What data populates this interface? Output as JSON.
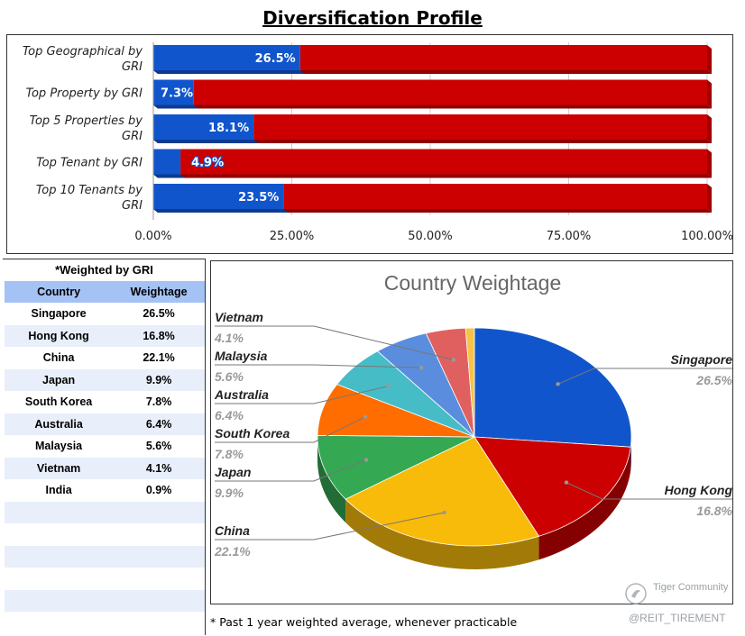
{
  "title": "Diversification Profile",
  "chart_data": [
    {
      "type": "bar",
      "orientation": "horizontal",
      "stacked": "100%",
      "categories": [
        "Top Geographical by GRI",
        "Top Property by GRI",
        "Top 5 Properties by GRI",
        "Top Tenant by GRI",
        "Top 10 Tenants by GRI"
      ],
      "series": [
        {
          "values": [
            26.5,
            7.3,
            18.1,
            4.9,
            23.5
          ],
          "color": "#1155cc"
        },
        {
          "values": [
            73.5,
            92.7,
            81.9,
            95.1,
            76.5
          ],
          "color": "#cc0000"
        }
      ],
      "data_labels": [
        "26.5%",
        "7.3%",
        "18.1%",
        "4.9%",
        "23.5%"
      ],
      "xlim": [
        0,
        100
      ],
      "xticks": [
        "0.00%",
        "25.00%",
        "50.00%",
        "75.00%",
        "100.00%"
      ],
      "grid": true
    },
    {
      "type": "pie",
      "title": "Country Weightage",
      "slices": [
        {
          "label": "Singapore",
          "value": 26.5,
          "label_text": "26.5%",
          "color": "#1155cc"
        },
        {
          "label": "Hong Kong",
          "value": 16.8,
          "label_text": "16.8%",
          "color": "#cc0000"
        },
        {
          "label": "China",
          "value": 22.1,
          "label_text": "22.1%",
          "color": "#f9bb0a"
        },
        {
          "label": "Japan",
          "value": 9.9,
          "label_text": "9.9%",
          "color": "#34a853"
        },
        {
          "label": "South Korea",
          "value": 7.8,
          "label_text": "7.8%",
          "color": "#ff6d01"
        },
        {
          "label": "Australia",
          "value": 6.4,
          "label_text": "6.4%",
          "color": "#46bdc6"
        },
        {
          "label": "Malaysia",
          "value": 5.6,
          "label_text": "5.6%",
          "color": "#5b8dde"
        },
        {
          "label": "Vietnam",
          "value": 4.1,
          "label_text": "4.1%",
          "color": "#e06060"
        },
        {
          "label": "India",
          "value": 0.9,
          "label_text": "",
          "color": "#f6c342"
        }
      ],
      "style": "3d"
    }
  ],
  "table": {
    "caption": "*Weighted by GRI",
    "headers": [
      "Country",
      "Weightage"
    ],
    "rows": [
      [
        "Singapore",
        "26.5%"
      ],
      [
        "Hong Kong",
        "16.8%"
      ],
      [
        "China",
        "22.1%"
      ],
      [
        "Japan",
        "9.9%"
      ],
      [
        "South Korea",
        "7.8%"
      ],
      [
        "Australia",
        "6.4%"
      ],
      [
        "Malaysia",
        "5.6%"
      ],
      [
        "Vietnam",
        "4.1%"
      ],
      [
        "India",
        "0.9%"
      ]
    ],
    "empty_rows": 6
  },
  "footnote": "* Past 1 year weighted average, whenever practicable",
  "watermark": {
    "community": "Tiger Community",
    "handle": "@REIT_TIREMENT"
  }
}
